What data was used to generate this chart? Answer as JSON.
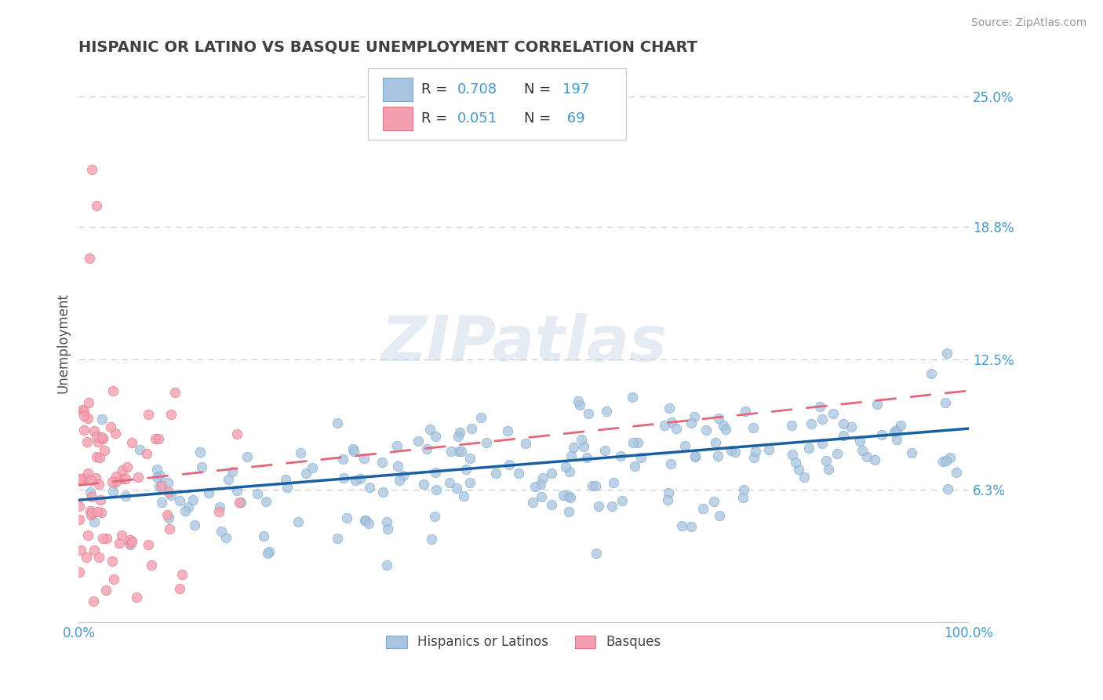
{
  "title": "HISPANIC OR LATINO VS BASQUE UNEMPLOYMENT CORRELATION CHART",
  "source_text": "Source: ZipAtlas.com",
  "watermark": "ZIPatlas",
  "ylabel": "Unemployment",
  "xlim": [
    0.0,
    1.0
  ],
  "ylim": [
    0.0,
    0.265
  ],
  "yticks": [
    0.063,
    0.125,
    0.188,
    0.25
  ],
  "ytick_labels": [
    "6.3%",
    "12.5%",
    "18.8%",
    "25.0%"
  ],
  "blue_color": "#a8c4e0",
  "blue_edge_color": "#7aaaca",
  "pink_color": "#f4a0b0",
  "pink_edge_color": "#e07888",
  "blue_line_color": "#1a5fa0",
  "pink_line_color": "#e06878",
  "legend_label_blue": "Hispanics or Latinos",
  "legend_label_pink": "Basques",
  "background_color": "#ffffff",
  "grid_color": "#cccccc",
  "title_color": "#404040",
  "tick_label_color": "#4499cc",
  "blue_line_intercept": 0.058,
  "blue_line_slope": 0.034,
  "pink_line_intercept": 0.065,
  "pink_line_slope": 0.045
}
